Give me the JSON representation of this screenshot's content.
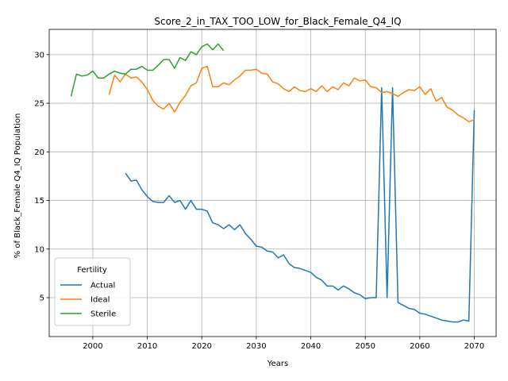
{
  "chart_data": {
    "type": "line",
    "title": "Score_2_in_TAX_TOO_LOW_for_Black_Female_Q4_IQ",
    "xlabel": "Years",
    "ylabel": "% of Black_Female Q4_IQ Population",
    "xlim": [
      1992,
      2074
    ],
    "ylim": [
      1.0,
      32.6
    ],
    "xticks": [
      2000,
      2010,
      2020,
      2030,
      2040,
      2050,
      2060,
      2070
    ],
    "yticks": [
      5,
      10,
      15,
      20,
      25,
      30
    ],
    "grid": true,
    "legend": {
      "title": "Fertility",
      "placement": "lower-left"
    },
    "series": [
      {
        "name": "Actual",
        "color": "#1f77b4",
        "x": [
          2006,
          2007,
          2008,
          2009,
          2010,
          2011,
          2012,
          2013,
          2014,
          2015,
          2016,
          2017,
          2018,
          2019,
          2020,
          2021,
          2022,
          2023,
          2024,
          2025,
          2026,
          2027,
          2028,
          2029,
          2030,
          2031,
          2032,
          2033,
          2034,
          2035,
          2036,
          2037,
          2038,
          2039,
          2040,
          2041,
          2042,
          2043,
          2044,
          2045,
          2046,
          2047,
          2048,
          2049,
          2050,
          2051,
          2052,
          2053,
          2054,
          2055,
          2056,
          2057,
          2058,
          2059,
          2060,
          2061,
          2062,
          2063,
          2064,
          2065,
          2066,
          2067,
          2068,
          2069,
          2070
        ],
        "y": [
          17.8,
          17.0,
          17.1,
          16.1,
          15.4,
          14.9,
          14.8,
          14.8,
          15.5,
          14.8,
          15.0,
          14.1,
          15.0,
          14.1,
          14.1,
          13.9,
          12.7,
          12.5,
          12.1,
          12.5,
          12.0,
          12.5,
          11.6,
          11.0,
          10.3,
          10.2,
          9.8,
          9.7,
          9.1,
          9.4,
          8.5,
          8.1,
          8.0,
          7.8,
          7.6,
          7.1,
          6.8,
          6.2,
          6.2,
          5.8,
          6.2,
          5.9,
          5.5,
          5.3,
          4.9,
          5.0,
          5.0,
          26.6,
          5.0,
          26.6,
          4.5,
          4.2,
          3.9,
          3.8,
          3.4,
          3.3,
          3.1,
          2.9,
          2.7,
          2.6,
          2.5,
          2.5,
          2.7,
          2.6,
          24.3
        ]
      },
      {
        "name": "Ideal",
        "color": "#ff7f0e",
        "x": [
          2003,
          2004,
          2005,
          2006,
          2007,
          2008,
          2009,
          2010,
          2011,
          2012,
          2013,
          2014,
          2015,
          2016,
          2017,
          2018,
          2019,
          2020,
          2021,
          2022,
          2023,
          2024,
          2025,
          2026,
          2027,
          2028,
          2029,
          2030,
          2031,
          2032,
          2033,
          2034,
          2035,
          2036,
          2037,
          2038,
          2039,
          2040,
          2041,
          2042,
          2043,
          2044,
          2045,
          2046,
          2047,
          2048,
          2049,
          2050,
          2051,
          2052,
          2053,
          2054,
          2055,
          2056,
          2057,
          2058,
          2059,
          2060,
          2061,
          2062,
          2063,
          2064,
          2065,
          2066,
          2067,
          2068,
          2069,
          2070
        ],
        "y": [
          25.9,
          27.9,
          27.2,
          28.0,
          27.6,
          27.7,
          27.2,
          26.4,
          25.3,
          24.7,
          24.4,
          25.0,
          24.1,
          25.1,
          25.8,
          26.8,
          27.1,
          28.6,
          28.8,
          26.7,
          26.7,
          27.1,
          26.9,
          27.4,
          27.8,
          28.4,
          28.4,
          28.5,
          28.1,
          28.0,
          27.2,
          27.0,
          26.5,
          26.2,
          26.7,
          26.3,
          26.2,
          26.5,
          26.2,
          26.8,
          26.2,
          26.7,
          26.4,
          27.1,
          26.8,
          27.6,
          27.3,
          27.4,
          26.7,
          26.6,
          26.1,
          26.2,
          26.0,
          25.7,
          26.1,
          26.4,
          26.3,
          26.7,
          25.9,
          26.5,
          25.2,
          25.6,
          24.6,
          24.3,
          23.8,
          23.5,
          23.1,
          23.3
        ]
      },
      {
        "name": "Sterile",
        "color": "#2ca02c",
        "x": [
          1996,
          1997,
          1998,
          1999,
          2000,
          2001,
          2002,
          2003,
          2004,
          2005,
          2006,
          2007,
          2008,
          2009,
          2010,
          2011,
          2012,
          2013,
          2014,
          2015,
          2016,
          2017,
          2018,
          2019,
          2020,
          2021,
          2022,
          2023,
          2024
        ],
        "y": [
          25.7,
          28.0,
          27.8,
          27.9,
          28.3,
          27.6,
          27.6,
          28.0,
          28.3,
          28.1,
          28.0,
          28.5,
          28.5,
          28.8,
          28.4,
          28.4,
          28.9,
          29.5,
          29.5,
          28.6,
          29.7,
          29.4,
          30.3,
          30.0,
          30.8,
          31.1,
          30.5,
          31.1,
          30.4
        ]
      }
    ]
  }
}
